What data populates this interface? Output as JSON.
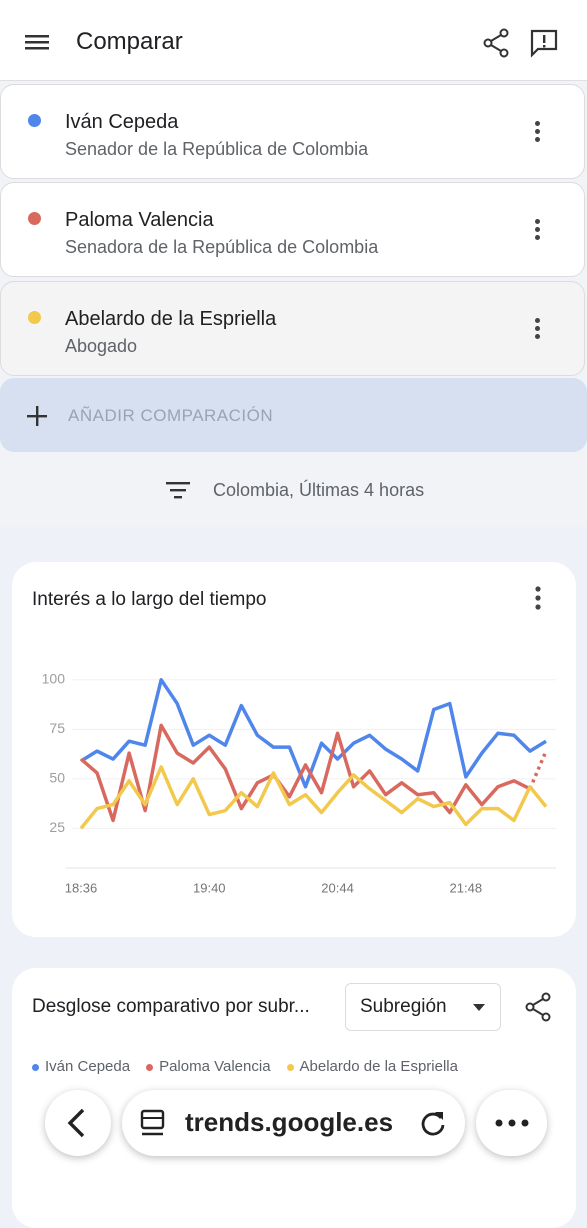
{
  "header": {
    "title": "Comparar"
  },
  "comparisons": [
    {
      "name": "Iván Cepeda",
      "subtitle": "Senador de la República de Colombia",
      "color": "#4f86ec"
    },
    {
      "name": "Paloma Valencia",
      "subtitle": "Senadora de la República de Colombia",
      "color": "#d9695f"
    },
    {
      "name": "Abelardo de la Espriella",
      "subtitle": "Abogado",
      "color": "#f2c94c"
    }
  ],
  "add_button": "AÑADIR COMPARACIÓN",
  "filter": "Colombia, Últimas 4 horas",
  "chart_data": {
    "type": "line",
    "title": "Interés a lo largo del tiempo",
    "categories": [
      "18:36",
      null,
      null,
      null,
      null,
      null,
      null,
      null,
      "19:40",
      null,
      null,
      null,
      null,
      null,
      null,
      null,
      "20:44",
      null,
      null,
      null,
      null,
      null,
      null,
      null,
      "21:48",
      null,
      null,
      null,
      null,
      null
    ],
    "series": [
      {
        "name": "Iván Cepeda",
        "color": "#4f86ec",
        "values": [
          59,
          64,
          60,
          69,
          67,
          100,
          88,
          67,
          72,
          67,
          87,
          72,
          66,
          66,
          46,
          68,
          60,
          68,
          72,
          65,
          60,
          54,
          85,
          88,
          51,
          63,
          73,
          72,
          64,
          69
        ]
      },
      {
        "name": "Paloma Valencia",
        "color": "#d9695f",
        "dashed_last": true,
        "values": [
          60,
          53,
          29,
          63,
          34,
          77,
          63,
          58,
          66,
          55,
          35,
          48,
          52,
          41,
          57,
          43,
          73,
          46,
          54,
          42,
          48,
          42,
          43,
          33,
          47,
          37,
          46,
          49,
          45,
          64
        ]
      },
      {
        "name": "Abelardo de la Espriella",
        "color": "#f2c94c",
        "values": [
          25,
          35,
          37,
          49,
          37,
          56,
          37,
          50,
          32,
          34,
          43,
          36,
          53,
          37,
          42,
          33,
          43,
          52,
          45,
          39,
          33,
          40,
          36,
          38,
          27,
          35,
          35,
          29,
          46,
          36
        ]
      }
    ],
    "ylim": [
      5,
      110
    ],
    "yticks": [
      25,
      50,
      75,
      100
    ],
    "grid": true
  },
  "breakdown": {
    "title": "Desglose comparativo por subr...",
    "dropdown": "Subregión"
  },
  "browser": {
    "url": "trends.google.es"
  }
}
